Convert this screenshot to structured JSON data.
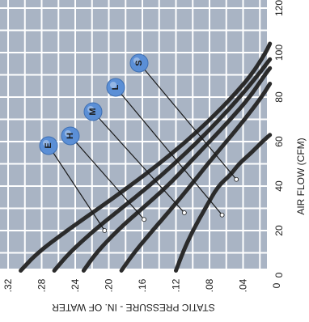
{
  "chart_data": {
    "type": "line",
    "rotation": "rotated 90 degrees clockwise (airflow axis vertical on the right, static pressure axis horizontal along the bottom, mirrored)",
    "x_axis": {
      "label": "AIR FLOW (CFM)",
      "ticks": [
        "0",
        "20",
        "40",
        "60",
        "80",
        "100",
        "120"
      ],
      "range": [
        0,
        120
      ]
    },
    "y_axis": {
      "label": "STATIC PRESSURE - IN. OF WATER",
      "ticks": [
        "0",
        ".04",
        ".08",
        ".12",
        ".16",
        ".20",
        ".24",
        ".28",
        ".32"
      ],
      "range": [
        0,
        0.32
      ]
    },
    "grid": true,
    "background_color": "#a9b4c4",
    "gridline_color": "#ffffff",
    "curve_color": "#2b2b2b",
    "marker_color": "#5b8fd6",
    "series": [
      {
        "name": "S",
        "points": [
          [
            2,
            0.12
          ],
          [
            10,
            0.112
          ],
          [
            20,
            0.1
          ],
          [
            30,
            0.085
          ],
          [
            40,
            0.07
          ],
          [
            45,
            0.055
          ],
          [
            50,
            0.045
          ],
          [
            55,
            0.03
          ],
          [
            60,
            0.017
          ],
          [
            63,
            0.008
          ]
        ]
      },
      {
        "name": "L",
        "points": [
          [
            2,
            0.185
          ],
          [
            10,
            0.17
          ],
          [
            20,
            0.148
          ],
          [
            30,
            0.125
          ],
          [
            40,
            0.103
          ],
          [
            50,
            0.082
          ],
          [
            60,
            0.06
          ],
          [
            70,
            0.038
          ],
          [
            80,
            0.018
          ],
          [
            86,
            0.008
          ]
        ]
      },
      {
        "name": "M",
        "points": [
          [
            2,
            0.23
          ],
          [
            10,
            0.215
          ],
          [
            20,
            0.19
          ],
          [
            30,
            0.16
          ],
          [
            40,
            0.13
          ],
          [
            50,
            0.105
          ],
          [
            60,
            0.08
          ],
          [
            70,
            0.055
          ],
          [
            80,
            0.032
          ],
          [
            90,
            0.014
          ],
          [
            93,
            0.008
          ]
        ]
      },
      {
        "name": "H",
        "points": [
          [
            2,
            0.265
          ],
          [
            10,
            0.247
          ],
          [
            20,
            0.218
          ],
          [
            30,
            0.185
          ],
          [
            40,
            0.152
          ],
          [
            50,
            0.122
          ],
          [
            60,
            0.094
          ],
          [
            70,
            0.068
          ],
          [
            80,
            0.044
          ],
          [
            90,
            0.022
          ],
          [
            97,
            0.008
          ]
        ]
      },
      {
        "name": "E",
        "points": [
          [
            2,
            0.305
          ],
          [
            10,
            0.285
          ],
          [
            20,
            0.25
          ],
          [
            30,
            0.212
          ],
          [
            40,
            0.175
          ],
          [
            50,
            0.14
          ],
          [
            60,
            0.108
          ],
          [
            70,
            0.079
          ],
          [
            80,
            0.053
          ],
          [
            90,
            0.03
          ],
          [
            100,
            0.013
          ],
          [
            104,
            0.008
          ]
        ]
      }
    ],
    "operating_points": [
      {
        "series": "E",
        "x": 20,
        "y": 0.205
      },
      {
        "series": "H",
        "x": 25,
        "y": 0.158
      },
      {
        "series": "M",
        "x": 28,
        "y": 0.11
      },
      {
        "series": "L",
        "x": 27,
        "y": 0.065
      },
      {
        "series": "S",
        "x": 43,
        "y": 0.048
      }
    ]
  }
}
